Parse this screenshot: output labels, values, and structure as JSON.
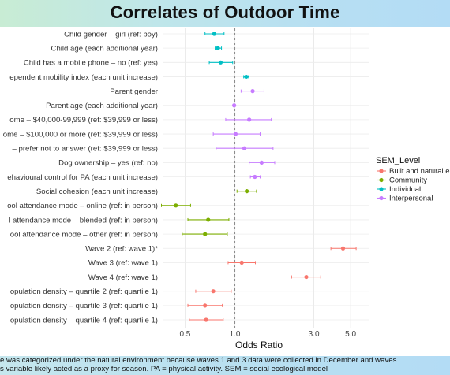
{
  "chart_data": {
    "type": "scatter",
    "title": "Correlates of Outdoor Time",
    "xlabel": "Odds Ratio",
    "x_scale": "log",
    "xlim": [
      0.37,
      6.5
    ],
    "x_ticks": [
      0.5,
      1.0,
      3.0,
      5.0
    ],
    "x_tick_labels": [
      "0.5",
      "1.0",
      "3.0",
      "5.0"
    ],
    "reference_line": 1.0,
    "grid": true,
    "legend": {
      "title": "SEM_Level",
      "placement": "right",
      "entries": [
        {
          "name": "Built and natural e",
          "color": "#F8766D"
        },
        {
          "name": "Community",
          "color": "#7CAE00"
        },
        {
          "name": "Individual",
          "color": "#00BFC4"
        },
        {
          "name": "Interpersonal",
          "color": "#C77CFF"
        }
      ]
    },
    "points": [
      {
        "label": "Child gender – girl (ref: boy)",
        "level": "Individual",
        "or": 0.75,
        "lo": 0.66,
        "hi": 0.86
      },
      {
        "label": "Child age (each additional year)",
        "level": "Individual",
        "or": 0.79,
        "lo": 0.76,
        "hi": 0.83
      },
      {
        "label": "Child has a mobile phone – no (ref: yes)",
        "level": "Individual",
        "or": 0.82,
        "lo": 0.7,
        "hi": 0.97
      },
      {
        "label": "ependent mobility index (each unit increase)",
        "level": "Individual",
        "or": 1.17,
        "lo": 1.13,
        "hi": 1.21
      },
      {
        "label": "Parent gender",
        "level": "Interpersonal",
        "or": 1.28,
        "lo": 1.09,
        "hi": 1.5
      },
      {
        "label": "Parent age (each additional year)",
        "level": "Interpersonal",
        "or": 0.99,
        "lo": 0.98,
        "hi": 1.0
      },
      {
        "label": "ome – $40,000-99,999 (ref: $39,999 or less)",
        "level": "Interpersonal",
        "or": 1.22,
        "lo": 0.88,
        "hi": 1.66
      },
      {
        "label": "ome – $100,000 or more (ref: $39,999 or less)",
        "level": "Interpersonal",
        "or": 1.01,
        "lo": 0.74,
        "hi": 1.42
      },
      {
        "label": "– prefer not to answer (ref: $39,999 or less)",
        "level": "Interpersonal",
        "or": 1.14,
        "lo": 0.77,
        "hi": 1.7
      },
      {
        "label": "Dog ownership – yes (ref: no)",
        "level": "Interpersonal",
        "or": 1.45,
        "lo": 1.22,
        "hi": 1.74
      },
      {
        "label": "ehavioural control for PA (each unit increase)",
        "level": "Interpersonal",
        "or": 1.32,
        "lo": 1.24,
        "hi": 1.42
      },
      {
        "label": "Social cohesion (each unit increase)",
        "level": "Community",
        "or": 1.18,
        "lo": 1.03,
        "hi": 1.35
      },
      {
        "label": "ool attendance mode – online (ref: in person)",
        "level": "Community",
        "or": 0.44,
        "lo": 0.36,
        "hi": 0.54
      },
      {
        "label": "l attendance mode – blended (ref: in person)",
        "level": "Community",
        "or": 0.69,
        "lo": 0.52,
        "hi": 0.92
      },
      {
        "label": "ool attendance mode – other (ref: in person)",
        "level": "Community",
        "or": 0.66,
        "lo": 0.48,
        "hi": 0.9
      },
      {
        "label": "Wave 2 (ref: wave 1)*",
        "level": "Built and natural e",
        "or": 4.5,
        "lo": 3.8,
        "hi": 5.4
      },
      {
        "label": "Wave 3 (ref: wave 1)",
        "level": "Built and natural e",
        "or": 1.1,
        "lo": 0.91,
        "hi": 1.33
      },
      {
        "label": "Wave 4 (ref: wave 1)",
        "level": "Built and natural e",
        "or": 2.7,
        "lo": 2.2,
        "hi": 3.3
      },
      {
        "label": "opulation density – quartile 2 (ref: quartile 1)",
        "level": "Built and natural e",
        "or": 0.74,
        "lo": 0.58,
        "hi": 0.95
      },
      {
        "label": "opulation density – quartile 3 (ref: quartile 1)",
        "level": "Built and natural e",
        "or": 0.66,
        "lo": 0.52,
        "hi": 0.84
      },
      {
        "label": "opulation density – quartile 4 (ref: quartile 1)",
        "level": "Built and natural e",
        "or": 0.67,
        "lo": 0.53,
        "hi": 0.85
      }
    ]
  },
  "footnote": {
    "line1": "e was categorized under the natural environment because waves 1 and 3 data were collected in December and waves",
    "line2": "s variable likely acted as a proxy for season. PA = physical activity. SEM = social ecological model"
  }
}
